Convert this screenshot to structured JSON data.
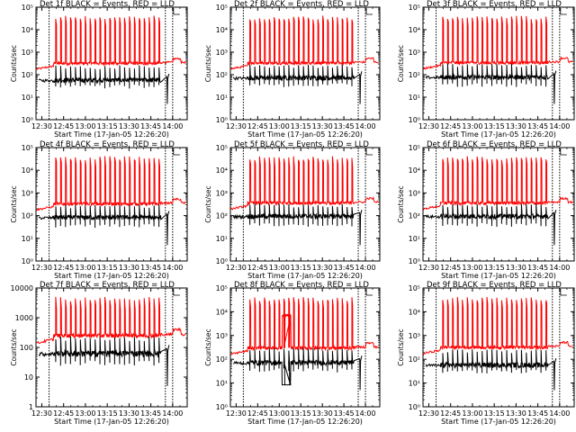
{
  "chart_data": [
    {
      "type": "line",
      "title": "Det 1f BLACK = Events, RED = LLD",
      "xlabel": "Start Time (17-Jan-05 12:26:20)",
      "ylabel": "Counts/sec",
      "yscale": "log",
      "ylim": [
        1,
        100000
      ],
      "ytick_labels": [
        "10⁰",
        "10¹",
        "10²",
        "10³",
        "10⁴",
        "10⁵"
      ],
      "xlim": [
        "12:26",
        "14:10"
      ],
      "xtick_labels": [
        "12:30",
        "12:45",
        "13:00",
        "13:15",
        "13:30",
        "13:45",
        "14:00"
      ],
      "vlines": [
        "12:35",
        "13:55",
        "14:00"
      ],
      "series": [
        {
          "name": "Events",
          "color": "#000000",
          "baseline": 55,
          "spike_peak": 220,
          "spike_trough": 30
        },
        {
          "name": "LLD",
          "color": "#ff0000",
          "baseline": 320,
          "spike_peak": 40000
        }
      ]
    },
    {
      "type": "line",
      "title": "Det 2f BLACK = Events, RED = LLD",
      "xlabel": "Start Time (17-Jan-05 12:26:20)",
      "ylabel": "Counts/sec",
      "yscale": "log",
      "ylim": [
        1,
        100000
      ],
      "ytick_labels": [
        "10⁰",
        "10¹",
        "10²",
        "10³",
        "10⁴",
        "10⁵"
      ],
      "xlim": [
        "12:26",
        "14:10"
      ],
      "xtick_labels": [
        "12:30",
        "12:45",
        "13:00",
        "13:15",
        "13:30",
        "13:45",
        "14:00"
      ],
      "vlines": [
        "12:35",
        "13:55",
        "14:00"
      ],
      "series": [
        {
          "name": "Events",
          "color": "#000000",
          "baseline": 70,
          "spike_peak": 250,
          "spike_trough": 35
        },
        {
          "name": "LLD",
          "color": "#ff0000",
          "baseline": 330,
          "spike_peak": 40000
        }
      ]
    },
    {
      "type": "line",
      "title": "Det 3f BLACK = Events, RED = LLD",
      "xlabel": "Start Time (17-Jan-05 12:26:20)",
      "ylabel": "Counts/sec",
      "yscale": "log",
      "ylim": [
        1,
        100000
      ],
      "ytick_labels": [
        "10⁰",
        "10¹",
        "10²",
        "10³",
        "10⁴",
        "10⁵"
      ],
      "xlim": [
        "12:26",
        "14:10"
      ],
      "xtick_labels": [
        "12:30",
        "12:45",
        "13:00",
        "13:15",
        "13:30",
        "13:45",
        "14:00"
      ],
      "vlines": [
        "12:35",
        "13:55",
        "14:00"
      ],
      "series": [
        {
          "name": "Events",
          "color": "#000000",
          "baseline": 75,
          "spike_peak": 260,
          "spike_trough": 35
        },
        {
          "name": "LLD",
          "color": "#ff0000",
          "baseline": 340,
          "spike_peak": 40000
        }
      ]
    },
    {
      "type": "line",
      "title": "Det 4f BLACK = Events, RED = LLD",
      "xlabel": "Start Time (17-Jan-05 12:26:20)",
      "ylabel": "Counts/sec",
      "yscale": "log",
      "ylim": [
        1,
        100000
      ],
      "ytick_labels": [
        "10⁰",
        "10¹",
        "10²",
        "10³",
        "10⁴",
        "10⁵"
      ],
      "xlim": [
        "12:26",
        "14:10"
      ],
      "xtick_labels": [
        "12:30",
        "12:45",
        "13:00",
        "13:15",
        "13:30",
        "13:45",
        "14:00"
      ],
      "vlines": [
        "12:35",
        "13:55",
        "14:00"
      ],
      "series": [
        {
          "name": "Events",
          "color": "#000000",
          "baseline": 80,
          "spike_peak": 270,
          "spike_trough": 35
        },
        {
          "name": "LLD",
          "color": "#ff0000",
          "baseline": 330,
          "spike_peak": 40000
        }
      ]
    },
    {
      "type": "line",
      "title": "Det 5f BLACK = Events, RED = LLD",
      "xlabel": "Start Time (17-Jan-05 12:26:20)",
      "ylabel": "Counts/sec",
      "yscale": "log",
      "ylim": [
        1,
        100000
      ],
      "ytick_labels": [
        "10⁰",
        "10¹",
        "10²",
        "10³",
        "10⁴",
        "10⁵"
      ],
      "xlim": [
        "12:26",
        "14:10"
      ],
      "xtick_labels": [
        "12:30",
        "12:45",
        "13:00",
        "13:15",
        "13:30",
        "13:45",
        "14:00"
      ],
      "vlines": [
        "12:35",
        "13:55",
        "14:00"
      ],
      "series": [
        {
          "name": "Events",
          "color": "#000000",
          "baseline": 90,
          "spike_peak": 290,
          "spike_trough": 40
        },
        {
          "name": "LLD",
          "color": "#ff0000",
          "baseline": 360,
          "spike_peak": 40000
        }
      ]
    },
    {
      "type": "line",
      "title": "Det 6f BLACK = Events, RED = LLD",
      "xlabel": "Start Time (17-Jan-05 12:26:20)",
      "ylabel": "Counts/sec",
      "yscale": "log",
      "ylim": [
        1,
        100000
      ],
      "ytick_labels": [
        "10⁰",
        "10¹",
        "10²",
        "10³",
        "10⁴",
        "10⁵"
      ],
      "xlim": [
        "12:26",
        "14:10"
      ],
      "xtick_labels": [
        "12:30",
        "12:45",
        "13:00",
        "13:15",
        "13:30",
        "13:45",
        "14:00"
      ],
      "vlines": [
        "12:35",
        "13:55",
        "14:00"
      ],
      "series": [
        {
          "name": "Events",
          "color": "#000000",
          "baseline": 90,
          "spike_peak": 290,
          "spike_trough": 40
        },
        {
          "name": "LLD",
          "color": "#ff0000",
          "baseline": 360,
          "spike_peak": 40000
        }
      ]
    },
    {
      "type": "line",
      "title": "Det 7f BLACK = Events, RED = LLD",
      "xlabel": "Start Time (17-Jan-05 12:26:20)",
      "ylabel": "Counts/sec",
      "yscale": "log",
      "ylim": [
        1,
        10000
      ],
      "ytick_labels": [
        "1",
        "10",
        "100",
        "1000",
        "10000"
      ],
      "xlim": [
        "12:26",
        "14:10"
      ],
      "xtick_labels": [
        "12:30",
        "12:45",
        "13:00",
        "13:15",
        "13:30",
        "13:45",
        "14:00"
      ],
      "vlines": [
        "12:35",
        "13:55",
        "14:00"
      ],
      "series": [
        {
          "name": "Events",
          "color": "#000000",
          "baseline": 60,
          "spike_peak": 200,
          "spike_trough": 30
        },
        {
          "name": "LLD",
          "color": "#ff0000",
          "baseline": 250,
          "spike_peak": 5000
        }
      ]
    },
    {
      "type": "line",
      "title": "Det 8f BLACK = Events, RED = LLD",
      "xlabel": "Start Time (17-Jan-05 12:26:20)",
      "ylabel": "Counts/sec",
      "yscale": "log",
      "ylim": [
        1,
        100000
      ],
      "ytick_labels": [
        "10⁰",
        "10¹",
        "10²",
        "10³",
        "10⁴",
        "10⁵"
      ],
      "xlim": [
        "12:26",
        "14:10"
      ],
      "xtick_labels": [
        "12:30",
        "12:45",
        "13:00",
        "13:15",
        "13:30",
        "13:45",
        "14:00"
      ],
      "vlines": [
        "12:35",
        "13:55",
        "14:00"
      ],
      "series": [
        {
          "name": "Events",
          "color": "#000000",
          "baseline": 70,
          "spike_peak": 260,
          "spike_trough": 35
        },
        {
          "name": "LLD",
          "color": "#ff0000",
          "baseline": 300,
          "spike_peak": 40000,
          "plateau": {
            "from": "13:02",
            "to": "13:08",
            "value": 7000
          }
        }
      ]
    },
    {
      "type": "line",
      "title": "Det 9f BLACK = Events, RED = LLD",
      "xlabel": "Start Time (17-Jan-05 12:26:20)",
      "ylabel": "Counts/sec",
      "yscale": "log",
      "ylim": [
        1,
        100000
      ],
      "ytick_labels": [
        "10⁰",
        "10¹",
        "10²",
        "10³",
        "10⁴",
        "10⁵"
      ],
      "xlim": [
        "12:26",
        "14:10"
      ],
      "xtick_labels": [
        "12:30",
        "12:45",
        "13:00",
        "13:15",
        "13:30",
        "13:45",
        "14:00"
      ],
      "vlines": [
        "12:35",
        "13:55",
        "14:00"
      ],
      "series": [
        {
          "name": "Events",
          "color": "#000000",
          "baseline": 55,
          "spike_peak": 220,
          "spike_trough": 30
        },
        {
          "name": "LLD",
          "color": "#ff0000",
          "baseline": 320,
          "spike_peak": 40000
        }
      ]
    }
  ]
}
